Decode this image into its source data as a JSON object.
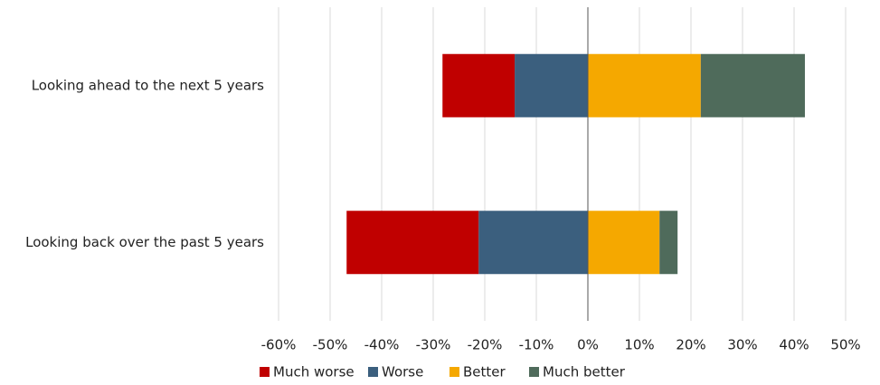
{
  "chart_data": {
    "type": "diverging-bar",
    "categories": [
      "Looking ahead to the next 5 years",
      "Looking back over the past 5 years"
    ],
    "series": [
      {
        "name": "Much worse",
        "color": "#c00000",
        "values": [
          -14,
          -25.6
        ]
      },
      {
        "name": "Worse",
        "color": "#3b5f7e",
        "values": [
          -14.2,
          -21.2
        ]
      },
      {
        "name": "Better",
        "color": "#f5a800",
        "values": [
          21.9,
          13.9
        ]
      },
      {
        "name": "Much better",
        "color": "#4f6b5b",
        "values": [
          20.2,
          3.5
        ]
      }
    ],
    "xlim": [
      -60,
      50
    ],
    "xticks": [
      {
        "value": -60,
        "label": "-60%"
      },
      {
        "value": -50,
        "label": "-50%"
      },
      {
        "value": -40,
        "label": "-40%"
      },
      {
        "value": -30,
        "label": "-30%"
      },
      {
        "value": -20,
        "label": "-20%"
      },
      {
        "value": -10,
        "label": "-10%"
      },
      {
        "value": 0,
        "label": "0%"
      },
      {
        "value": 10,
        "label": "10%"
      },
      {
        "value": 20,
        "label": "20%"
      },
      {
        "value": 30,
        "label": "30%"
      },
      {
        "value": 40,
        "label": "40%"
      },
      {
        "value": 50,
        "label": "50%"
      }
    ],
    "grid": true,
    "legend": "bottom"
  }
}
